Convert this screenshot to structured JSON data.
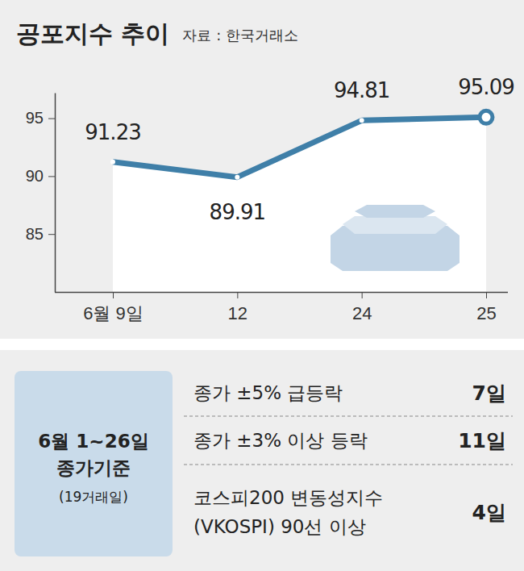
{
  "chart_data": {
    "type": "line",
    "title": "공포지수 추이",
    "source": "자료 : 한국거래소",
    "categories": [
      "6월 9일",
      "12",
      "24",
      "25"
    ],
    "values": [
      91.23,
      89.91,
      94.81,
      95.09
    ],
    "color": "#3f7fa8",
    "ylim": [
      80,
      97.2
    ],
    "yticks": [
      85,
      90,
      95
    ],
    "grid": false,
    "data_labels": true,
    "marker": "circle"
  },
  "summary_table": {
    "header": [
      "6월 1~26일",
      "종가기준",
      "(19거래일)"
    ],
    "rows": [
      {
        "label": [
          "종가 ±5% 급등락"
        ],
        "value": "7일"
      },
      {
        "label": [
          "종가 ±3% 이상 등락"
        ],
        "value": "11일"
      },
      {
        "label": [
          "코스피200 변동성지수",
          "(VKOSPI) 90선 이상"
        ],
        "value": "4일"
      }
    ]
  }
}
